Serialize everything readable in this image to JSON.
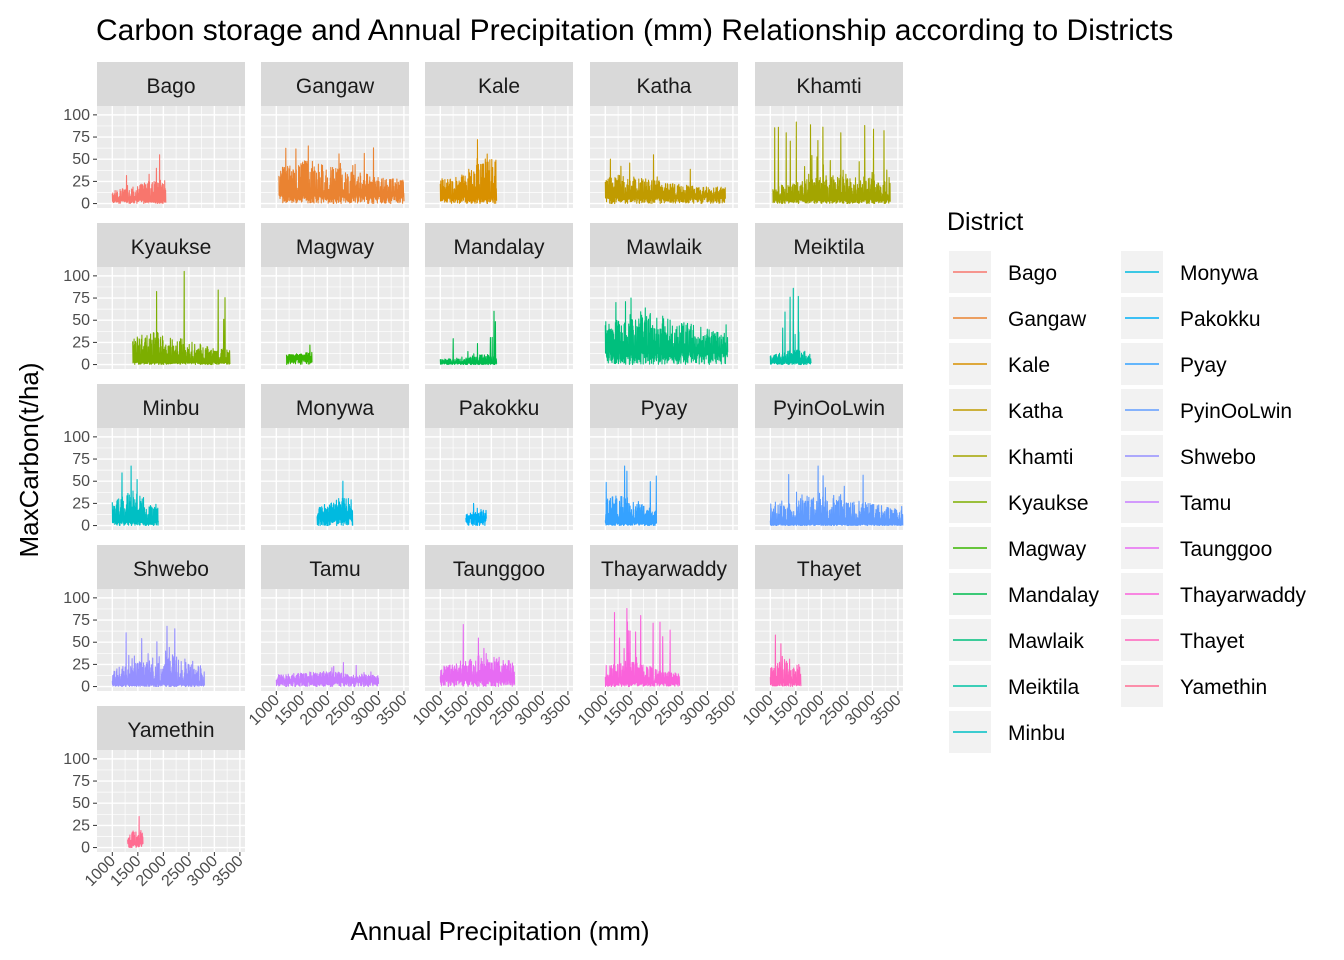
{
  "chart_data": {
    "type": "line",
    "title": "Carbon storage and Annual Precipitation (mm) Relationship according to Districts",
    "xlabel": "Annual Precipitation (mm)",
    "ylabel": "MaxCarbon(t/ha)",
    "xlim": [
      700,
      3600
    ],
    "ylim": [
      -5,
      110
    ],
    "x_ticks": [
      1000,
      1500,
      2000,
      2500,
      3000,
      3500
    ],
    "y_ticks": [
      0,
      25,
      50,
      75,
      100
    ],
    "legend_title": "District",
    "legend_position": "right",
    "grid": true,
    "facets": [
      {
        "name": "Bago",
        "color": "#F8766D",
        "profile": {
          "xmin": 1000,
          "xmax": 2050,
          "ymax": 55,
          "base": 5,
          "amp": 22,
          "peak_x": 1750
        }
      },
      {
        "name": "Gangaw",
        "color": "#EA8331",
        "profile": {
          "xmin": 1050,
          "xmax": 3500,
          "ymax": 65,
          "base": 10,
          "amp": 40,
          "peak_x": 1600
        }
      },
      {
        "name": "Kale",
        "color": "#D89000",
        "profile": {
          "xmin": 1000,
          "xmax": 2100,
          "ymax": 72,
          "base": 8,
          "amp": 45,
          "peak_x": 1950
        }
      },
      {
        "name": "Katha",
        "color": "#C09B00",
        "profile": {
          "xmin": 1000,
          "xmax": 3350,
          "ymax": 55,
          "base": 8,
          "amp": 25,
          "peak_x": 1300
        }
      },
      {
        "name": "Khamti",
        "color": "#A3A500",
        "profile": {
          "xmin": 1050,
          "xmax": 3350,
          "ymax": 92,
          "base": 5,
          "amp": 30,
          "peak_x": 2400
        }
      },
      {
        "name": "Kyaukse",
        "color": "#7CAE00",
        "profile": {
          "xmin": 1400,
          "xmax": 3300,
          "ymax": 105,
          "base": 3,
          "amp": 35,
          "peak_x": 1800
        }
      },
      {
        "name": "Magway",
        "color": "#39B600",
        "profile": {
          "xmin": 1200,
          "xmax": 1700,
          "ymax": 22,
          "base": 8,
          "amp": 8,
          "peak_x": 1650
        }
      },
      {
        "name": "Mandalay",
        "color": "#00BB4E",
        "profile": {
          "xmin": 1000,
          "xmax": 2100,
          "ymax": 60,
          "base": 2,
          "amp": 10,
          "peak_x": 1850
        }
      },
      {
        "name": "Mawlaik",
        "color": "#00BF7D",
        "profile": {
          "xmin": 1000,
          "xmax": 3400,
          "ymax": 75,
          "base": 15,
          "amp": 45,
          "peak_x": 1800
        }
      },
      {
        "name": "Meiktila",
        "color": "#00C1A3",
        "profile": {
          "xmin": 1000,
          "xmax": 1800,
          "ymax": 86,
          "base": 3,
          "amp": 15,
          "peak_x": 1500
        }
      },
      {
        "name": "Minbu",
        "color": "#00BFC4",
        "profile": {
          "xmin": 1000,
          "xmax": 1900,
          "ymax": 67,
          "base": 5,
          "amp": 35,
          "peak_x": 1400
        }
      },
      {
        "name": "Monywa",
        "color": "#00BAE0",
        "profile": {
          "xmin": 1800,
          "xmax": 2500,
          "ymax": 50,
          "base": 10,
          "amp": 25,
          "peak_x": 2300
        }
      },
      {
        "name": "Pakokku",
        "color": "#00B0F6",
        "profile": {
          "xmin": 1500,
          "xmax": 1900,
          "ymax": 25,
          "base": 8,
          "amp": 12,
          "peak_x": 1800
        }
      },
      {
        "name": "Pyay",
        "color": "#35A2FF",
        "profile": {
          "xmin": 1000,
          "xmax": 2000,
          "ymax": 67,
          "base": 3,
          "amp": 35,
          "peak_x": 1300
        }
      },
      {
        "name": "PyinOoLwin",
        "color": "#619CFF",
        "profile": {
          "xmin": 1000,
          "xmax": 3600,
          "ymax": 67,
          "base": 2,
          "amp": 35,
          "peak_x": 2000
        }
      },
      {
        "name": "Shwebo",
        "color": "#9590FF",
        "profile": {
          "xmin": 1000,
          "xmax": 2800,
          "ymax": 68,
          "base": 3,
          "amp": 35,
          "peak_x": 2050
        }
      },
      {
        "name": "Tamu",
        "color": "#C77CFF",
        "profile": {
          "xmin": 1000,
          "xmax": 3000,
          "ymax": 27,
          "base": 6,
          "amp": 12,
          "peak_x": 1900
        }
      },
      {
        "name": "Taunggoo",
        "color": "#E76BF3",
        "profile": {
          "xmin": 1000,
          "xmax": 2450,
          "ymax": 70,
          "base": 8,
          "amp": 30,
          "peak_x": 1900
        }
      },
      {
        "name": "Thayarwaddy",
        "color": "#FA62DB",
        "profile": {
          "xmin": 1000,
          "xmax": 2450,
          "ymax": 88,
          "base": 5,
          "amp": 25,
          "peak_x": 1400
        }
      },
      {
        "name": "Thayet",
        "color": "#FF62BC",
        "profile": {
          "xmin": 1000,
          "xmax": 1600,
          "ymax": 58,
          "base": 5,
          "amp": 30,
          "peak_x": 1300
        }
      },
      {
        "name": "Yamethin",
        "color": "#FF6C91",
        "profile": {
          "xmin": 1300,
          "xmax": 1600,
          "ymax": 35,
          "base": 5,
          "amp": 20,
          "peak_x": 1500
        }
      }
    ]
  }
}
